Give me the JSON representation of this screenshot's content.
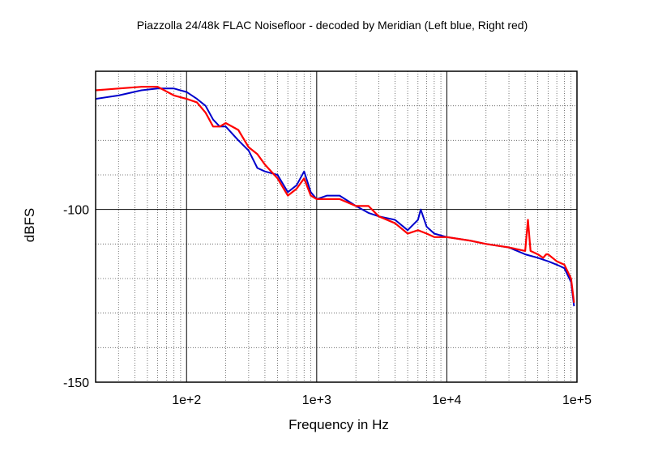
{
  "chart_data": {
    "type": "line",
    "title": "Piazzolla 24/48k FLAC Noisefloor -  decoded by Meridian (Left blue, Right red)",
    "xlabel": "Frequency  in Hz",
    "ylabel": "dBFS",
    "x_scale": "log",
    "xlim": [
      20,
      100000
    ],
    "ylim": [
      -150,
      -60
    ],
    "x_ticks": [
      {
        "value": 100,
        "label": "1e+2"
      },
      {
        "value": 1000,
        "label": "1e+3"
      },
      {
        "value": 10000,
        "label": "1e+4"
      },
      {
        "value": 100000,
        "label": "1e+5"
      }
    ],
    "y_ticks": [
      {
        "value": -100,
        "label": "-100"
      },
      {
        "value": -150,
        "label": "-150"
      }
    ],
    "grid": true,
    "series": [
      {
        "color": "#0000cc",
        "x": [
          20,
          30,
          45,
          60,
          80,
          100,
          120,
          140,
          160,
          180,
          200,
          250,
          300,
          350,
          400,
          500,
          600,
          700,
          800,
          900,
          1000,
          1200,
          1500,
          2000,
          2500,
          3000,
          4000,
          5000,
          6000,
          6300,
          7000,
          8000,
          10000,
          15000,
          20000,
          30000,
          40000,
          50000,
          60000,
          70000,
          80000,
          90000,
          95000
        ],
        "y": [
          -68,
          -67,
          -65.5,
          -65,
          -65,
          -66,
          -68,
          -70,
          -74,
          -76,
          -76,
          -80,
          -83,
          -88,
          -89,
          -90,
          -95,
          -93,
          -89,
          -95,
          -97,
          -96,
          -96,
          -99,
          -101,
          -102,
          -103,
          -106,
          -103,
          -100,
          -105,
          -107,
          -108,
          -109,
          -110,
          -111,
          -113,
          -114,
          -115,
          -116,
          -117,
          -121,
          -128
        ]
      },
      {
        "color": "#ff0000",
        "x": [
          20,
          30,
          45,
          60,
          80,
          100,
          120,
          140,
          160,
          180,
          200,
          250,
          300,
          350,
          400,
          500,
          600,
          700,
          800,
          900,
          1000,
          1200,
          1500,
          2000,
          2500,
          3000,
          4000,
          5000,
          6000,
          7000,
          8000,
          10000,
          15000,
          20000,
          30000,
          40000,
          42000,
          44000,
          50000,
          55000,
          58000,
          60000,
          70000,
          80000,
          90000,
          95000
        ],
        "y": [
          -65.5,
          -65,
          -64.5,
          -64.5,
          -67,
          -68,
          -69,
          -72,
          -76,
          -76,
          -75,
          -77,
          -82,
          -84,
          -87,
          -91,
          -96,
          -94,
          -91,
          -96,
          -97,
          -97,
          -97,
          -99,
          -99,
          -102,
          -104,
          -107,
          -106,
          -107,
          -108,
          -108,
          -109,
          -110,
          -111,
          -112,
          -103,
          -112,
          -113,
          -114,
          -113,
          -113,
          -115,
          -116,
          -120,
          -127
        ]
      }
    ]
  }
}
